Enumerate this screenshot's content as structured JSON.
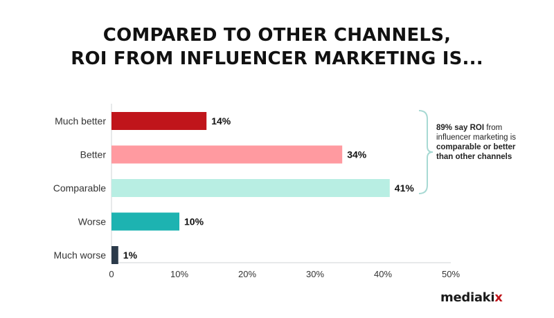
{
  "chart_data": {
    "type": "bar",
    "orientation": "horizontal",
    "title_lines": [
      "COMPARED TO OTHER CHANNELS,",
      "ROI FROM INFLUENCER MARKETING IS..."
    ],
    "categories": [
      "Much better",
      "Better",
      "Comparable",
      "Worse",
      "Much worse"
    ],
    "values": [
      14,
      34,
      41,
      10,
      1
    ],
    "value_labels": [
      "14%",
      "34%",
      "41%",
      "10%",
      "1%"
    ],
    "colors": [
      "#c0151b",
      "#ff9aa0",
      "#b8eee3",
      "#1db3b1",
      "#2b3a4a"
    ],
    "xlim": [
      0,
      50
    ],
    "xticks": [
      "0",
      "10%",
      "20%",
      "30%",
      "40%",
      "50%"
    ],
    "xlabel": "",
    "ylabel": "",
    "grid": false,
    "annotation": {
      "bold_lead": "89% say",
      "bold_roi": "ROI",
      "text": "from influencer marketing is",
      "bold_tail": "comparable or better than other channels"
    }
  },
  "brand": {
    "logo_main": "mediaki",
    "logo_x": "x"
  }
}
